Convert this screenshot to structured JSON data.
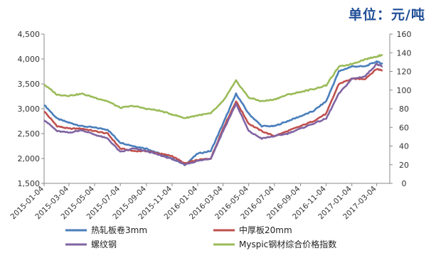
{
  "unit_label": "单位：元/吨",
  "chart_data": {
    "type": "line",
    "title": "",
    "xlabel": "",
    "ylabel": "",
    "x": [
      "2015-01-04",
      "2015-02-04",
      "2015-03-04",
      "2015-04-04",
      "2015-05-04",
      "2015-06-04",
      "2015-07-04",
      "2015-08-04",
      "2015-09-04",
      "2015-10-04",
      "2015-11-04",
      "2015-12-04",
      "2016-01-04",
      "2016-02-04",
      "2016-03-04",
      "2016-04-04",
      "2016-05-04",
      "2016-06-04",
      "2016-07-04",
      "2016-08-04",
      "2016-09-04",
      "2016-10-04",
      "2016-11-04",
      "2016-12-04",
      "2017-01-04",
      "2017-02-04",
      "2017-03-04",
      "2017-03-18"
    ],
    "x_tick_labels": [
      "2015-01-04",
      "2015-03-04",
      "2015-05-04",
      "2015-07-04",
      "2015-09-04",
      "2015-11-04",
      "2016-01-04",
      "2016-03-04",
      "2016-05-04",
      "2016-07-04",
      "2016-09-04",
      "2016-11-04",
      "2017-01-04",
      "2017-03-04"
    ],
    "y_left": {
      "ylim": [
        1500,
        4500
      ],
      "ticks": [
        "1,500",
        "2,000",
        "2,500",
        "3,000",
        "3,500",
        "4,000",
        "4,500"
      ]
    },
    "y_right": {
      "ylim": [
        0,
        160
      ],
      "ticks": [
        "0",
        "20",
        "40",
        "60",
        "80",
        "100",
        "120",
        "140",
        "160"
      ]
    },
    "legend_position": "bottom",
    "series": [
      {
        "name": "热轧板卷3mm",
        "axis": "left",
        "color": "#4a7ebb",
        "values": [
          3080,
          2800,
          2720,
          2650,
          2620,
          2580,
          2320,
          2250,
          2200,
          2100,
          2000,
          1870,
          2100,
          2150,
          2700,
          3300,
          2900,
          2650,
          2650,
          2750,
          2850,
          2950,
          3150,
          3750,
          3850,
          3850,
          3950,
          3900
        ]
      },
      {
        "name": "中厚板20mm",
        "axis": "left",
        "color": "#c0504d",
        "values": [
          2950,
          2650,
          2600,
          2600,
          2550,
          2500,
          2200,
          2150,
          2150,
          2100,
          2050,
          1900,
          1970,
          2000,
          2600,
          3150,
          2700,
          2550,
          2450,
          2550,
          2650,
          2750,
          2900,
          3500,
          3600,
          3600,
          3800,
          3770
        ]
      },
      {
        "name": "螺纹钢",
        "axis": "left",
        "color": "#8064a2",
        "values": [
          2780,
          2550,
          2520,
          2570,
          2480,
          2400,
          2130,
          2200,
          2150,
          2070,
          1990,
          1880,
          1950,
          2000,
          2550,
          3100,
          2550,
          2400,
          2450,
          2500,
          2600,
          2700,
          2800,
          3300,
          3600,
          3650,
          3900,
          3850
        ]
      },
      {
        "name": "Myspic钢材综合价格指数",
        "axis": "right",
        "color": "#9bbb59",
        "values": [
          106,
          95,
          94,
          96,
          92,
          88,
          81,
          83,
          80,
          78,
          74,
          70,
          73,
          75,
          88,
          110,
          92,
          88,
          90,
          95,
          98,
          101,
          105,
          125,
          128,
          133,
          136,
          138
        ]
      }
    ]
  }
}
